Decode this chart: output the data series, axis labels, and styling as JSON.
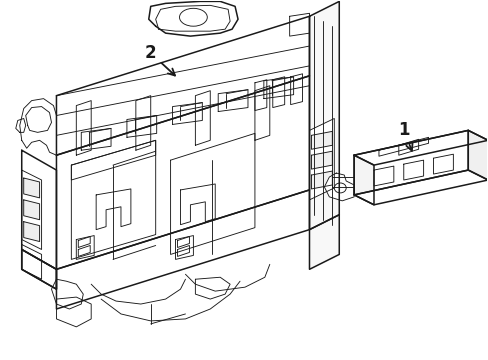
{
  "background_color": "#ffffff",
  "line_color": "#1a1a1a",
  "line_width": 1.1,
  "thin_lw": 0.65,
  "label_1_text": "1",
  "label_2_text": "2",
  "fig_width": 4.89,
  "fig_height": 3.6,
  "dpi": 100
}
